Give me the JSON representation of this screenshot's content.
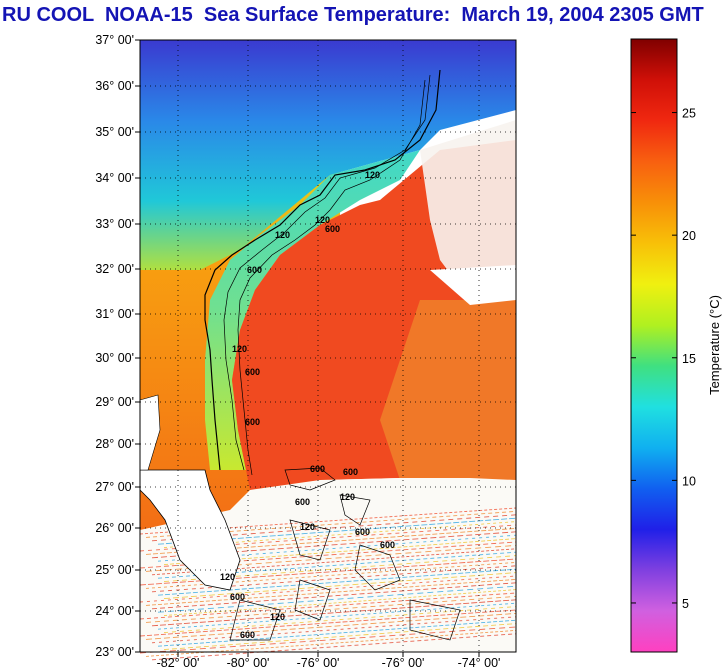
{
  "title": "RU COOL  NOAA-15  Sea Surface Temperature:  March 19, 2004 2305 GMT",
  "map": {
    "lat_labels": [
      "37° 00'",
      "36° 00'",
      "35° 00'",
      "34° 00'",
      "33° 00'",
      "32° 00'",
      "31° 00'",
      "30° 00'",
      "29° 00'",
      "28° 00'",
      "27° 00'",
      "26° 00'",
      "25° 00'",
      "24° 00'",
      "23° 00'"
    ],
    "lon_labels": [
      "-82° 00'",
      "-80° 00'",
      "-76° 00'",
      "-76° 00'",
      "-74° 00'"
    ],
    "contour_labels": [
      "120",
      "600",
      "120",
      "600",
      "120",
      "120",
      "600",
      "600",
      "120",
      "120",
      "600",
      "600",
      "120",
      "600",
      "600",
      "600",
      "120",
      "600",
      "600"
    ]
  },
  "colorbar": {
    "label": "Temperature (°C)",
    "ticks": [
      "25",
      "20",
      "15",
      "10",
      "5"
    ],
    "tick_values": [
      25,
      20,
      15,
      10,
      5
    ],
    "range": [
      3,
      28
    ],
    "stops": [
      "#ff40c0",
      "#d060e0",
      "#8040e0",
      "#2020e8",
      "#1060f0",
      "#10b0f0",
      "#20e0e0",
      "#40e080",
      "#b0f020",
      "#f0f010",
      "#f8c008",
      "#f89008",
      "#f86010",
      "#f02810",
      "#d01008",
      "#800000"
    ]
  },
  "colors": {
    "title": "#1414b4",
    "land_north": "#3a60d0",
    "shelf": "#40d8c0",
    "gulf_stream": "#f04020",
    "offshore": "#f07020",
    "land": "#ffffff"
  }
}
